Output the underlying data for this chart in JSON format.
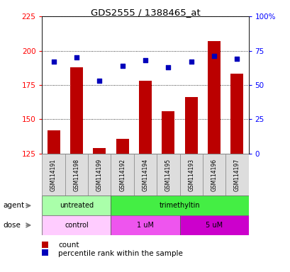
{
  "title": "GDS2555 / 1388465_at",
  "samples": [
    "GSM114191",
    "GSM114198",
    "GSM114199",
    "GSM114192",
    "GSM114194",
    "GSM114195",
    "GSM114193",
    "GSM114196",
    "GSM114197"
  ],
  "count_values": [
    142,
    188,
    129,
    136,
    178,
    156,
    166,
    207,
    183
  ],
  "percentile_values": [
    67,
    70,
    53,
    64,
    68,
    63,
    67,
    71,
    69
  ],
  "ylim_left": [
    125,
    225
  ],
  "ylim_right": [
    0,
    100
  ],
  "yticks_left": [
    125,
    150,
    175,
    200,
    225
  ],
  "yticks_right": [
    0,
    25,
    50,
    75,
    100
  ],
  "bar_color": "#BB0000",
  "dot_color": "#0000BB",
  "agent_groups": [
    {
      "label": "untreated",
      "start": 0,
      "end": 3,
      "color": "#AAFFAA"
    },
    {
      "label": "trimethyltin",
      "start": 3,
      "end": 9,
      "color": "#44EE44"
    }
  ],
  "dose_groups": [
    {
      "label": "control",
      "start": 0,
      "end": 3,
      "color": "#FFCCFF"
    },
    {
      "label": "1 uM",
      "start": 3,
      "end": 6,
      "color": "#EE55EE"
    },
    {
      "label": "5 uM",
      "start": 6,
      "end": 9,
      "color": "#CC00CC"
    }
  ],
  "legend_count_label": "count",
  "legend_pct_label": "percentile rank within the sample",
  "agent_label": "agent",
  "dose_label": "dose"
}
